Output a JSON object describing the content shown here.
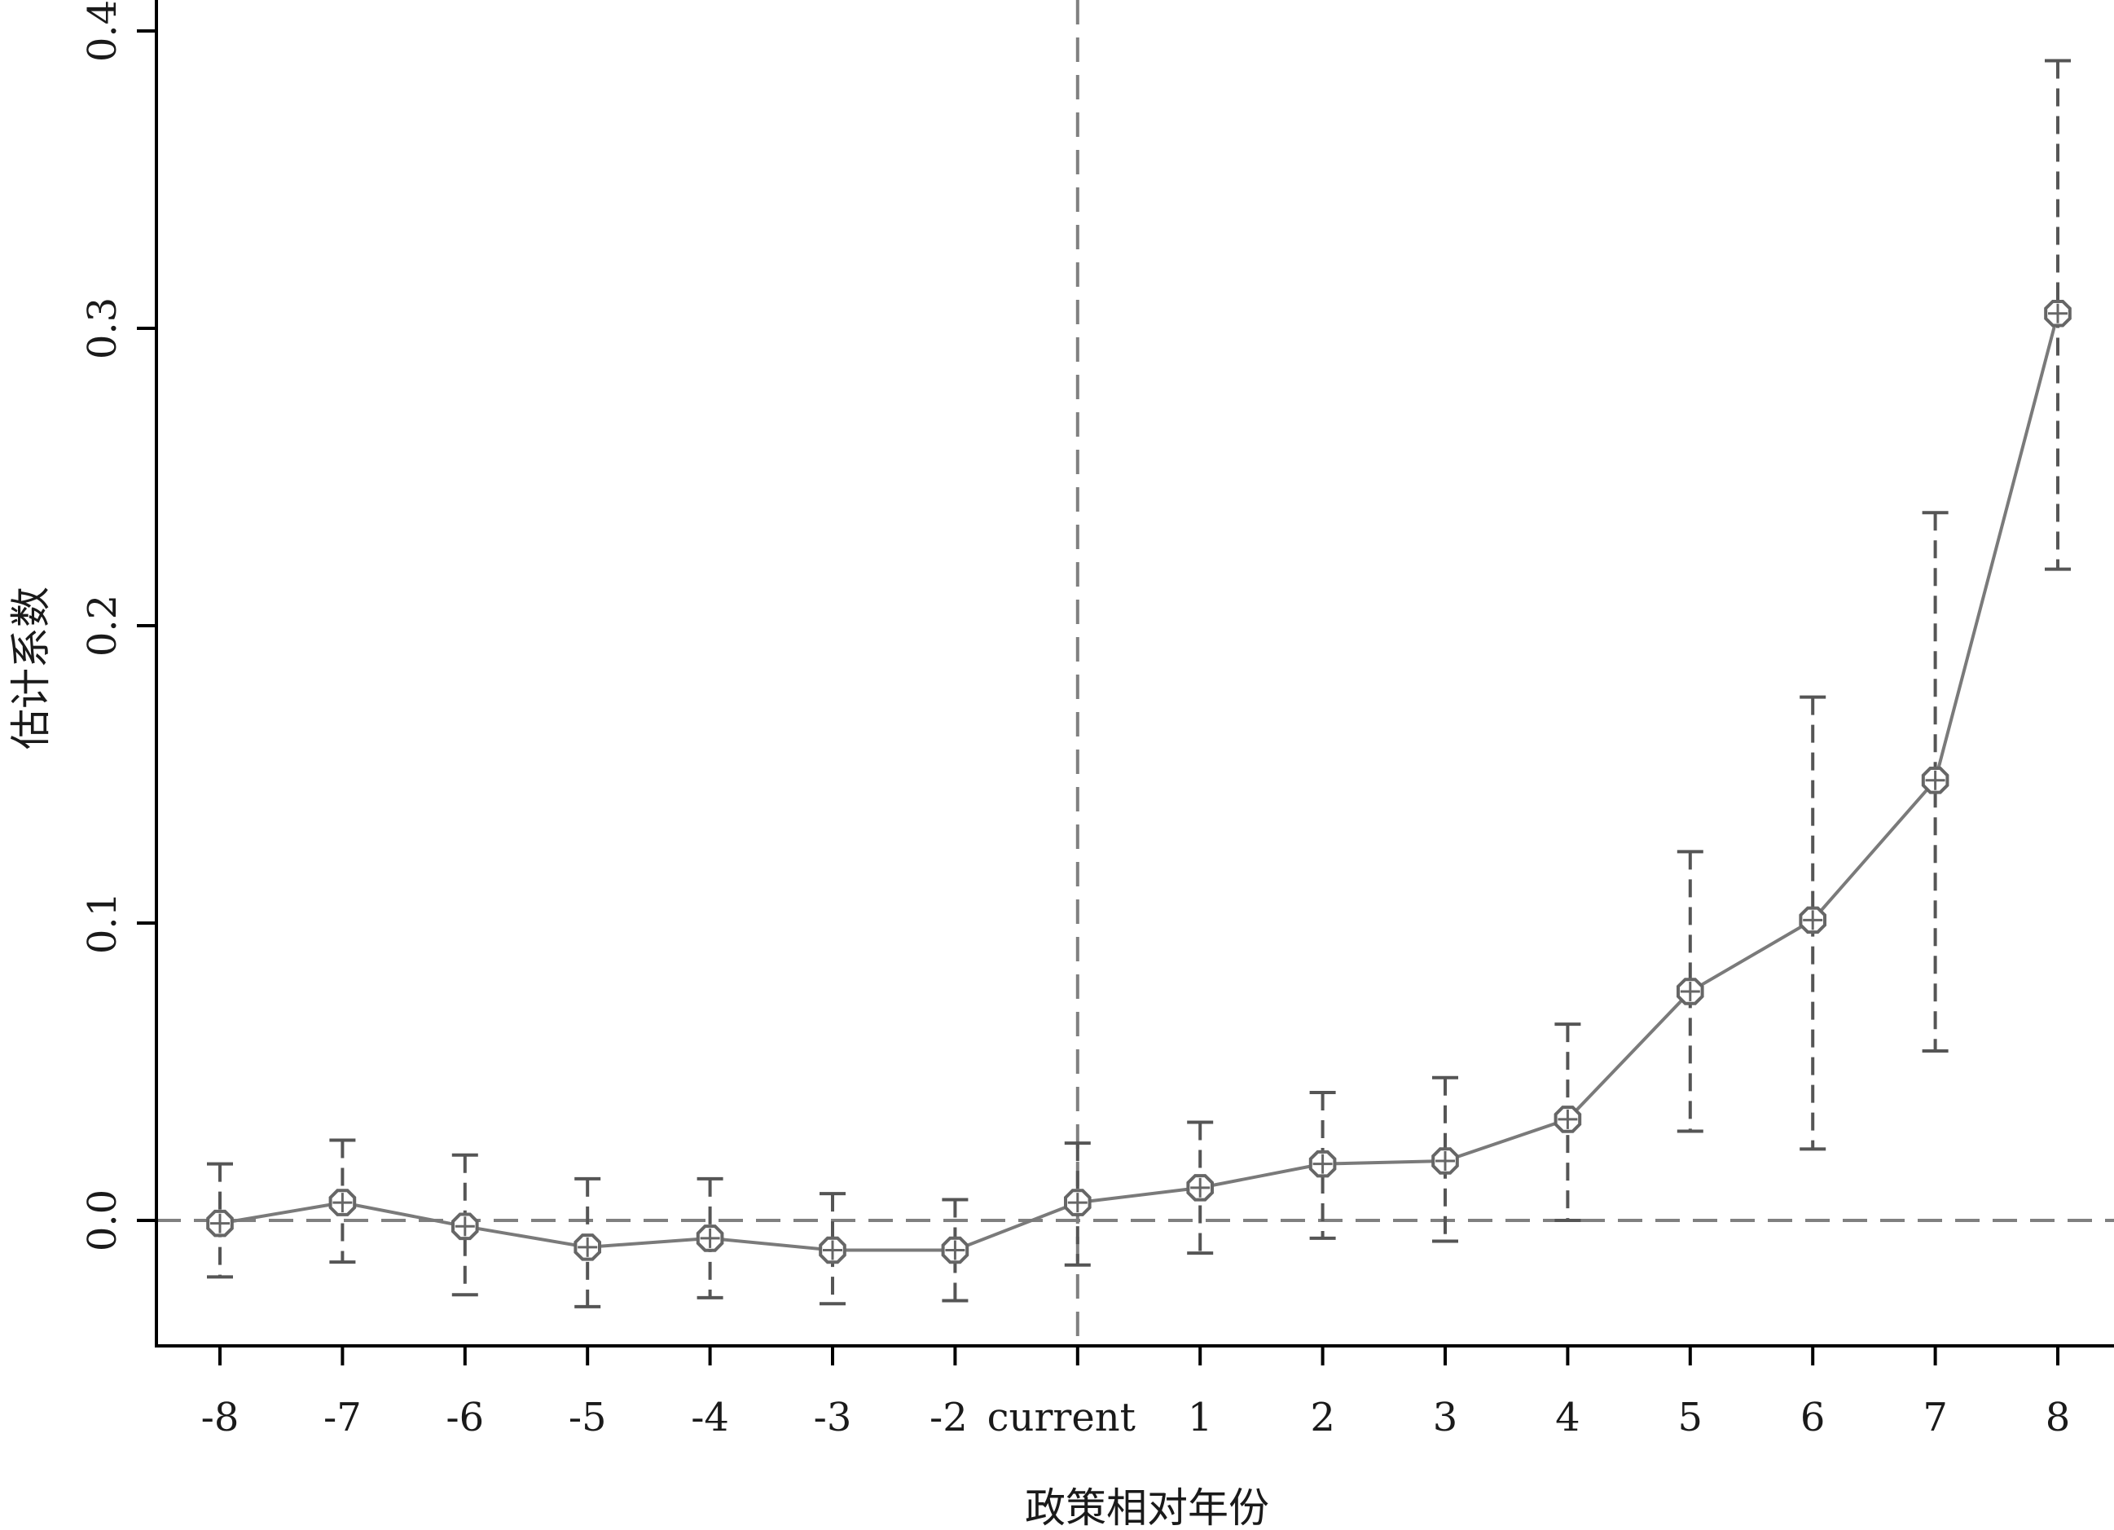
{
  "chart_data": {
    "type": "line",
    "xlabel": "政策相对年份",
    "ylabel": "估计系数",
    "categories": [
      "-8",
      "-7",
      "-6",
      "-5",
      "-4",
      "-3",
      "-2",
      "current",
      "1",
      "2",
      "3",
      "4",
      "5",
      "6",
      "7",
      "8"
    ],
    "yticks": [
      "0.0",
      "0.1",
      "0.2",
      "0.3",
      "0.4"
    ],
    "ylim": [
      -0.042,
      0.41
    ],
    "series": [
      {
        "values": [
          -0.001,
          0.006,
          -0.002,
          -0.009,
          -0.006,
          -0.01,
          -0.01,
          0.006,
          0.011,
          0.019,
          0.02,
          0.034,
          0.077,
          0.101,
          0.148,
          0.305
        ],
        "ci_upper": [
          0.019,
          0.027,
          0.022,
          0.014,
          0.014,
          0.009,
          0.007,
          0.026,
          0.033,
          0.043,
          0.048,
          0.066,
          0.124,
          0.176,
          0.238,
          0.39
        ],
        "ci_lower": [
          -0.019,
          -0.014,
          -0.025,
          -0.029,
          -0.026,
          -0.028,
          -0.027,
          -0.015,
          -0.011,
          -0.006,
          -0.007,
          0.0,
          0.03,
          0.024,
          0.057,
          0.219
        ]
      }
    ],
    "reference_lines": {
      "horizontal_y": 0.0,
      "vertical_at": "current"
    },
    "grid": false,
    "colors": {
      "series": "#7a7a7a",
      "errorbar": "#555555",
      "reference": "#808080",
      "axis": "#000000"
    }
  }
}
